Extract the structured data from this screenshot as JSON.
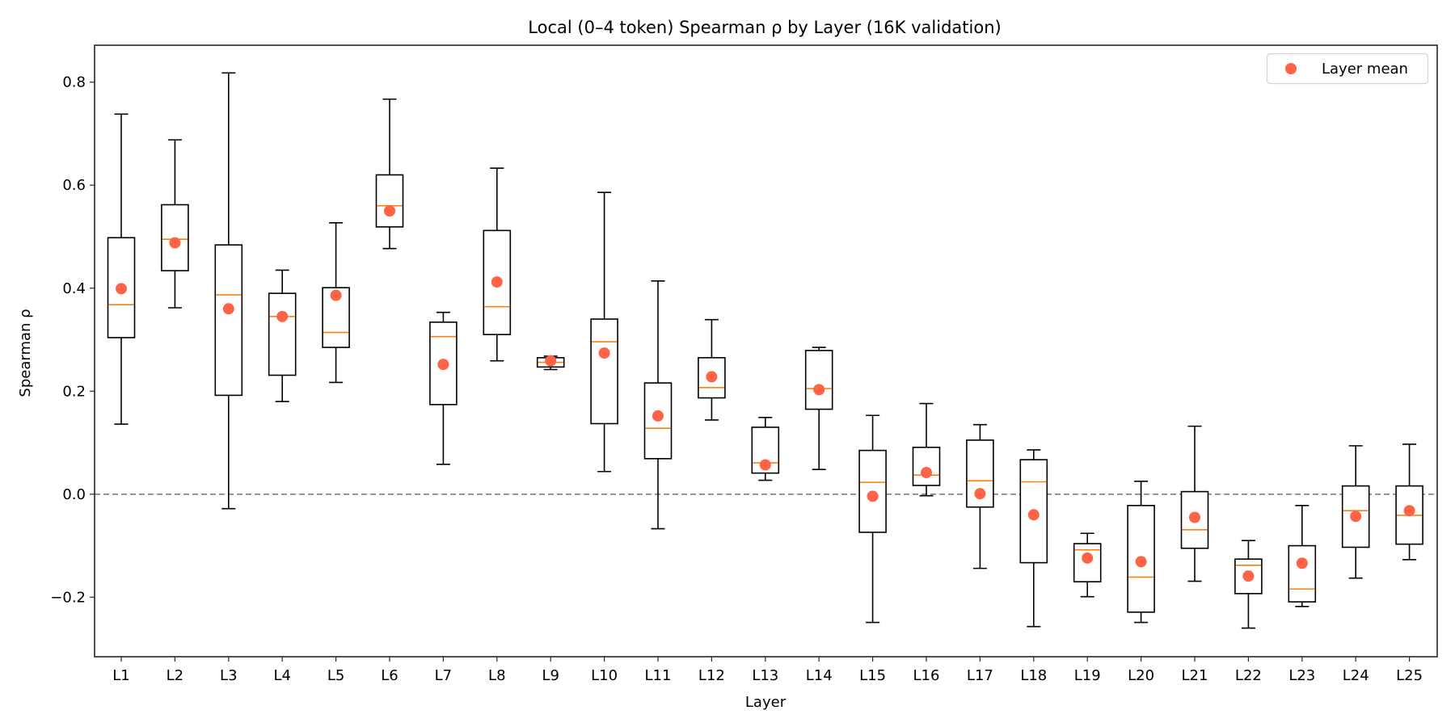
{
  "chart_data": {
    "type": "box",
    "title": "Local (0–4 token) Spearman ρ by Layer (16K validation)",
    "xlabel": "Layer",
    "ylabel": "Spearman ρ",
    "ylim": [
      -0.31,
      0.87
    ],
    "yticks": [
      -0.2,
      0.0,
      0.2,
      0.4,
      0.6,
      0.8
    ],
    "ytick_labels": [
      "−0.2",
      "0.0",
      "0.2",
      "0.4",
      "0.6",
      "0.8"
    ],
    "reference_line": {
      "y": 0.0,
      "style": "dashed",
      "color": "#808080"
    },
    "legend": {
      "position": "top-right",
      "entries": [
        {
          "label": "Layer mean",
          "marker": "circle",
          "color": "#ff6347"
        }
      ]
    },
    "colors": {
      "box": "#000000",
      "median": "#ff7f0e",
      "mean": "#ff6347"
    },
    "categories": [
      "L1",
      "L2",
      "L3",
      "L4",
      "L5",
      "L6",
      "L7",
      "L8",
      "L9",
      "L10",
      "L11",
      "L12",
      "L13",
      "L14",
      "L15",
      "L16",
      "L17",
      "L18",
      "L19",
      "L20",
      "L21",
      "L22",
      "L23",
      "L24",
      "L25"
    ],
    "boxes": [
      {
        "label": "L1",
        "whislo": 0.136,
        "q1": 0.304,
        "median": 0.368,
        "q3": 0.498,
        "whishi": 0.738,
        "mean": 0.399
      },
      {
        "label": "L2",
        "whislo": 0.362,
        "q1": 0.434,
        "median": 0.495,
        "q3": 0.562,
        "whishi": 0.688,
        "mean": 0.488
      },
      {
        "label": "L3",
        "whislo": -0.028,
        "q1": 0.192,
        "median": 0.387,
        "q3": 0.484,
        "whishi": 0.818,
        "mean": 0.36
      },
      {
        "label": "L4",
        "whislo": 0.18,
        "q1": 0.231,
        "median": 0.345,
        "q3": 0.39,
        "whishi": 0.435,
        "mean": 0.345
      },
      {
        "label": "L5",
        "whislo": 0.217,
        "q1": 0.285,
        "median": 0.314,
        "q3": 0.401,
        "whishi": 0.527,
        "mean": 0.386
      },
      {
        "label": "L6",
        "whislo": 0.477,
        "q1": 0.519,
        "median": 0.56,
        "q3": 0.62,
        "whishi": 0.767,
        "mean": 0.55
      },
      {
        "label": "L7",
        "whislo": 0.058,
        "q1": 0.174,
        "median": 0.306,
        "q3": 0.334,
        "whishi": 0.353,
        "mean": 0.252
      },
      {
        "label": "L8",
        "whislo": 0.259,
        "q1": 0.31,
        "median": 0.364,
        "q3": 0.512,
        "whishi": 0.633,
        "mean": 0.412
      },
      {
        "label": "L9",
        "whislo": 0.242,
        "q1": 0.247,
        "median": 0.256,
        "q3": 0.265,
        "whishi": 0.268,
        "mean": 0.259
      },
      {
        "label": "L10",
        "whislo": 0.044,
        "q1": 0.137,
        "median": 0.296,
        "q3": 0.34,
        "whishi": 0.586,
        "mean": 0.274
      },
      {
        "label": "L11",
        "whislo": -0.067,
        "q1": 0.069,
        "median": 0.128,
        "q3": 0.216,
        "whishi": 0.414,
        "mean": 0.152
      },
      {
        "label": "L12",
        "whislo": 0.144,
        "q1": 0.187,
        "median": 0.207,
        "q3": 0.265,
        "whishi": 0.339,
        "mean": 0.228
      },
      {
        "label": "L13",
        "whislo": 0.027,
        "q1": 0.041,
        "median": 0.061,
        "q3": 0.13,
        "whishi": 0.149,
        "mean": 0.057
      },
      {
        "label": "L14",
        "whislo": 0.048,
        "q1": 0.165,
        "median": 0.205,
        "q3": 0.279,
        "whishi": 0.285,
        "mean": 0.203
      },
      {
        "label": "L15",
        "whislo": -0.249,
        "q1": -0.074,
        "median": 0.023,
        "q3": 0.085,
        "whishi": 0.153,
        "mean": -0.004
      },
      {
        "label": "L16",
        "whislo": -0.003,
        "q1": 0.017,
        "median": 0.037,
        "q3": 0.091,
        "whishi": 0.176,
        "mean": 0.042
      },
      {
        "label": "L17",
        "whislo": -0.144,
        "q1": -0.025,
        "median": 0.026,
        "q3": 0.105,
        "whishi": 0.135,
        "mean": 0.001
      },
      {
        "label": "L18",
        "whislo": -0.257,
        "q1": -0.133,
        "median": 0.024,
        "q3": 0.067,
        "whishi": 0.086,
        "mean": -0.04
      },
      {
        "label": "L19",
        "whislo": -0.199,
        "q1": -0.17,
        "median": -0.108,
        "q3": -0.096,
        "whishi": -0.076,
        "mean": -0.124
      },
      {
        "label": "L20",
        "whislo": -0.249,
        "q1": -0.229,
        "median": -0.161,
        "q3": -0.022,
        "whishi": 0.025,
        "mean": -0.131
      },
      {
        "label": "L21",
        "whislo": -0.169,
        "q1": -0.105,
        "median": -0.069,
        "q3": 0.005,
        "whishi": 0.132,
        "mean": -0.045
      },
      {
        "label": "L22",
        "whislo": -0.26,
        "q1": -0.193,
        "median": -0.138,
        "q3": -0.126,
        "whishi": -0.09,
        "mean": -0.159
      },
      {
        "label": "L23",
        "whislo": -0.218,
        "q1": -0.209,
        "median": -0.184,
        "q3": -0.1,
        "whishi": -0.022,
        "mean": -0.134
      },
      {
        "label": "L24",
        "whislo": -0.163,
        "q1": -0.103,
        "median": -0.032,
        "q3": 0.016,
        "whishi": 0.094,
        "mean": -0.043
      },
      {
        "label": "L25",
        "whislo": -0.127,
        "q1": -0.097,
        "median": -0.041,
        "q3": 0.016,
        "whishi": 0.097,
        "mean": -0.032
      }
    ]
  }
}
